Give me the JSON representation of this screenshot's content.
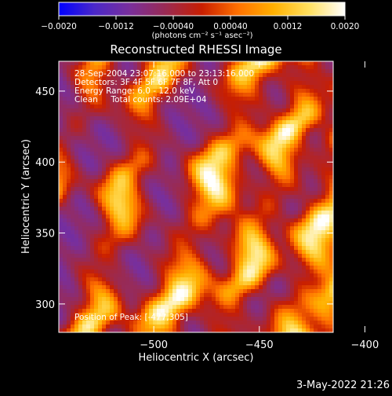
{
  "chart_data": {
    "type": "heatmap",
    "title": "Reconstructed RHESSI Image",
    "xlabel": "Heliocentric X (arcsec)",
    "ylabel": "Heliocentric Y (arcsec)",
    "xlim": [
      -545,
      -415
    ],
    "ylim": [
      280,
      471
    ],
    "x_ticks": [
      -500,
      -450,
      -400
    ],
    "x_tick_labels": [
      "−500",
      "−450",
      "−400"
    ],
    "y_ticks": [
      300,
      350,
      400,
      450
    ],
    "y_tick_labels": [
      "300",
      "350",
      "400",
      "450"
    ],
    "colorbar": {
      "range": [
        -0.002,
        0.002
      ],
      "ticks": [
        -0.002,
        -0.0012,
        -0.0004,
        0.0004,
        0.0012,
        0.002
      ],
      "tick_labels": [
        "−0.0020",
        "−0.0012",
        "−0.00040",
        "0.00040",
        "0.0012",
        "0.0020"
      ],
      "unit_label": "(photons cm⁻² s⁻¹ asec⁻²)",
      "colors": [
        "#0000ff",
        "#4b28c8",
        "#7a2f9a",
        "#9a2a52",
        "#c81e00",
        "#ff7000",
        "#ffb000",
        "#ffe060",
        "#ffffff"
      ]
    },
    "annotations": [
      "28-Sep-2004 23:07:16.000 to 23:13:16.000",
      "Detectors: 3F 4F 5F 6F 7F 8F, Att 0",
      "Energy Range: 6.0 - 12.0 keV",
      "Clean     Total counts: 2.09E+04"
    ],
    "peak_text": "Position of Peak: [-477,305]",
    "peak": [
      -477,
      305
    ],
    "footer_date": "3-May-2022 21:26"
  }
}
